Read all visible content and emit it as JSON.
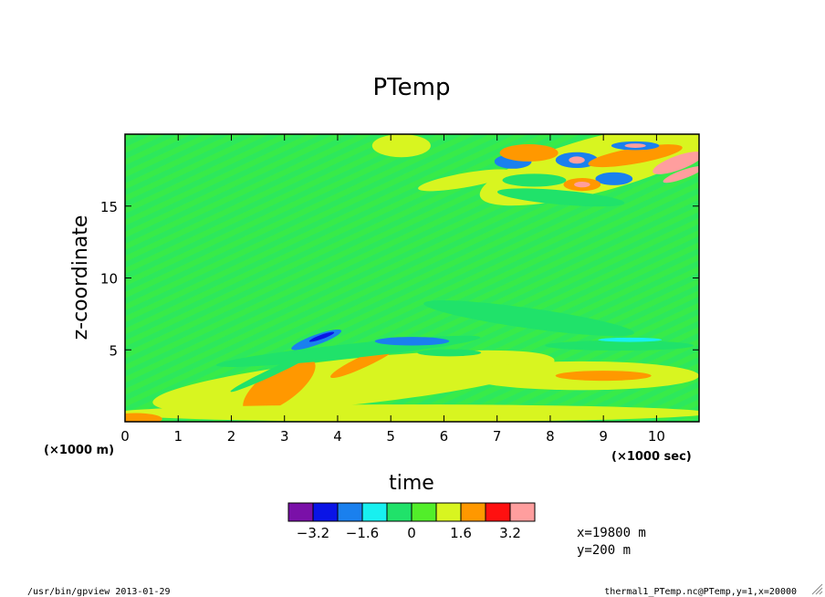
{
  "window": {
    "footer_left": "/usr/bin/gpview  2013-01-29",
    "footer_right": "thermal1_PTemp.nc@PTemp,y=1,x=20000",
    "resize_icon": "resize-grip-icon"
  },
  "chart_data": {
    "type": "heatmap",
    "title": "PTemp",
    "xlabel": "time",
    "ylabel": "z-coordinate",
    "x_unit_label": "(×1000 sec)",
    "y_unit_label": "(×1000 m)",
    "xlim": [
      0,
      10.8
    ],
    "ylim": [
      0,
      20
    ],
    "x_ticks": [
      0,
      1,
      2,
      3,
      4,
      5,
      6,
      7,
      8,
      9,
      10
    ],
    "y_ticks": [
      5,
      10,
      15
    ],
    "grid": false,
    "colorbar": {
      "placement": "bottom",
      "colors": [
        "#7a10a8",
        "#0a14e6",
        "#1a80ee",
        "#18f0f0",
        "#20e26a",
        "#52ee2a",
        "#d8f520",
        "#ff9800",
        "#ff1010",
        "#ff9e9e"
      ],
      "tick_labels": [
        "−3.2",
        "−1.6",
        "0",
        "1.6",
        "3.2"
      ]
    },
    "info_lines": [
      "x=19800 m",
      "y=200 m"
    ],
    "background_color": "#2de85c",
    "features": [
      {
        "shape": "ellipse",
        "cx": 5.2,
        "cy": 19.2,
        "rx": 0.55,
        "ry": 0.8,
        "value": 0.8,
        "rot": 0
      },
      {
        "shape": "ellipse",
        "cx": 7.6,
        "cy": 7.2,
        "rx": 2.0,
        "ry": 0.7,
        "value": -0.8,
        "rot": 8
      },
      {
        "shape": "ellipse",
        "cx": 8.9,
        "cy": 17.9,
        "rx": 2.3,
        "ry": 1.9,
        "value": 0.8,
        "rot": -15
      },
      {
        "shape": "ellipse",
        "cx": 7.3,
        "cy": 18.1,
        "rx": 0.35,
        "ry": 0.5,
        "value": -2.4,
        "rot": 0
      },
      {
        "shape": "ellipse",
        "cx": 7.7,
        "cy": 16.8,
        "rx": 0.6,
        "ry": 0.45,
        "value": -0.8,
        "rot": 0
      },
      {
        "shape": "ellipse",
        "cx": 7.6,
        "cy": 18.7,
        "rx": 0.55,
        "ry": 0.6,
        "value": 2.4,
        "rot": 0
      },
      {
        "shape": "ellipse",
        "cx": 8.5,
        "cy": 18.2,
        "rx": 0.4,
        "ry": 0.55,
        "value": -2.4,
        "rot": 0
      },
      {
        "shape": "ellipse",
        "cx": 8.5,
        "cy": 18.2,
        "rx": 0.15,
        "ry": 0.25,
        "value": 4.0,
        "rot": 0
      },
      {
        "shape": "ellipse",
        "cx": 9.6,
        "cy": 18.5,
        "rx": 0.9,
        "ry": 0.55,
        "value": 2.4,
        "rot": -10
      },
      {
        "shape": "ellipse",
        "cx": 9.6,
        "cy": 19.2,
        "rx": 0.45,
        "ry": 0.3,
        "value": -2.4,
        "rot": 0
      },
      {
        "shape": "ellipse",
        "cx": 9.6,
        "cy": 19.2,
        "rx": 0.2,
        "ry": 0.15,
        "value": 4.0,
        "rot": 0
      },
      {
        "shape": "ellipse",
        "cx": 10.4,
        "cy": 18.0,
        "rx": 0.5,
        "ry": 0.5,
        "value": 3.2,
        "rot": -20
      },
      {
        "shape": "ellipse",
        "cx": 10.5,
        "cy": 17.2,
        "rx": 0.4,
        "ry": 0.3,
        "value": 4.0,
        "rot": -20
      },
      {
        "shape": "ellipse",
        "cx": 9.2,
        "cy": 16.9,
        "rx": 0.35,
        "ry": 0.45,
        "value": -2.4,
        "rot": 0
      },
      {
        "shape": "ellipse",
        "cx": 8.6,
        "cy": 16.5,
        "rx": 0.35,
        "ry": 0.45,
        "value": 2.4,
        "rot": 0
      },
      {
        "shape": "ellipse",
        "cx": 8.6,
        "cy": 16.5,
        "rx": 0.15,
        "ry": 0.2,
        "value": 4.0,
        "rot": 0
      },
      {
        "shape": "ellipse",
        "cx": 8.2,
        "cy": 15.6,
        "rx": 1.2,
        "ry": 0.5,
        "value": -0.8,
        "rot": 5
      },
      {
        "shape": "ellipse",
        "cx": 6.4,
        "cy": 16.8,
        "rx": 0.9,
        "ry": 0.5,
        "value": 0.8,
        "rot": -10
      },
      {
        "shape": "ellipse",
        "cx": 4.3,
        "cy": 2.8,
        "rx": 3.8,
        "ry": 1.6,
        "value": 0.8,
        "rot": -6
      },
      {
        "shape": "ellipse",
        "cx": 2.9,
        "cy": 2.5,
        "rx": 0.8,
        "ry": 1.2,
        "value": 1.6,
        "rot": -35
      },
      {
        "shape": "ellipse",
        "cx": 3.2,
        "cy": 3.3,
        "rx": 0.18,
        "ry": 0.9,
        "value": 2.4,
        "rot": 30
      },
      {
        "shape": "ellipse",
        "cx": 4.5,
        "cy": 4.2,
        "rx": 0.7,
        "ry": 0.4,
        "value": 1.6,
        "rot": -25
      },
      {
        "shape": "ellipse",
        "cx": 8.6,
        "cy": 3.2,
        "rx": 2.2,
        "ry": 1.0,
        "value": 0.8,
        "rot": 0
      },
      {
        "shape": "ellipse",
        "cx": 9.0,
        "cy": 3.2,
        "rx": 0.9,
        "ry": 0.35,
        "value": 1.6,
        "rot": 0
      },
      {
        "shape": "ellipse",
        "cx": 5.4,
        "cy": 0.6,
        "rx": 5.6,
        "ry": 0.6,
        "value": 0.8,
        "rot": 0
      },
      {
        "shape": "ellipse",
        "cx": 0.2,
        "cy": 0.2,
        "rx": 0.5,
        "ry": 0.4,
        "value": 1.6,
        "rot": 0
      },
      {
        "shape": "ellipse",
        "cx": 4.2,
        "cy": 4.9,
        "rx": 2.5,
        "ry": 0.5,
        "value": -0.8,
        "rot": -6
      },
      {
        "shape": "ellipse",
        "cx": 3.6,
        "cy": 5.7,
        "rx": 0.5,
        "ry": 0.35,
        "value": -2.4,
        "rot": -20
      },
      {
        "shape": "ellipse",
        "cx": 3.7,
        "cy": 5.9,
        "rx": 0.25,
        "ry": 0.15,
        "value": -3.2,
        "rot": -20
      },
      {
        "shape": "ellipse",
        "cx": 5.4,
        "cy": 5.6,
        "rx": 0.7,
        "ry": 0.3,
        "value": -2.4,
        "rot": 0
      },
      {
        "shape": "ellipse",
        "cx": 2.8,
        "cy": 3.5,
        "rx": 0.9,
        "ry": 0.25,
        "value": -0.8,
        "rot": -25
      },
      {
        "shape": "ellipse",
        "cx": 9.3,
        "cy": 5.3,
        "rx": 1.4,
        "ry": 0.35,
        "value": -0.8,
        "rot": 0
      },
      {
        "shape": "ellipse",
        "cx": 6.1,
        "cy": 4.8,
        "rx": 0.6,
        "ry": 0.25,
        "value": -0.8,
        "rot": 0
      },
      {
        "shape": "ellipse",
        "cx": 9.5,
        "cy": 5.7,
        "rx": 0.6,
        "ry": 0.15,
        "value": -1.6,
        "rot": 0
      }
    ]
  }
}
